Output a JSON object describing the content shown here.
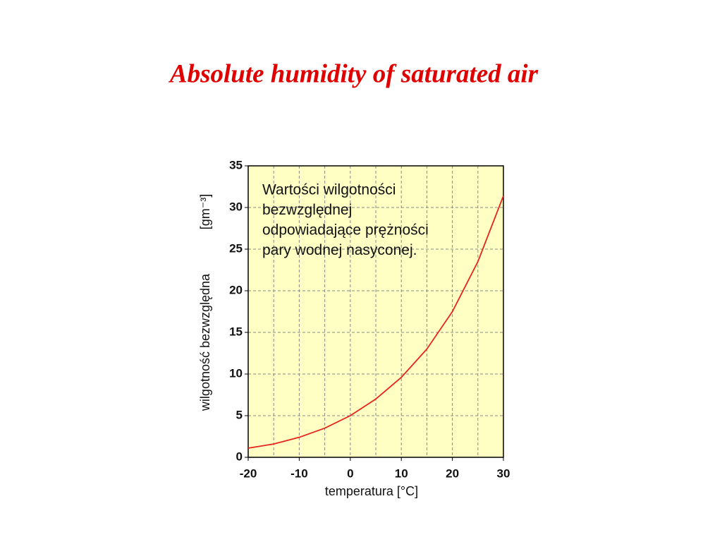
{
  "chart_data": {
    "type": "line",
    "title": "Absolute humidity of saturated air",
    "annotation": [
      "Wartości wilgotności",
      "bezwzględnej",
      "odpowiadające prężności",
      "pary wodnej nasyconej."
    ],
    "x_label": "temperatura [°C]",
    "y_label": "wilgotność bezwzględna",
    "y_unit": "[gm⁻³]",
    "x": [
      -20,
      -15,
      -10,
      -5,
      0,
      5,
      10,
      15,
      20,
      25,
      30
    ],
    "series": [
      {
        "name": "absolute humidity",
        "color": "#e8231e",
        "values": [
          1.1,
          1.6,
          2.4,
          3.5,
          5.0,
          7.0,
          9.6,
          13.0,
          17.5,
          23.5,
          31.4
        ]
      }
    ],
    "xlim": [
      -20,
      30
    ],
    "xticks": [
      -20,
      -10,
      0,
      10,
      20,
      30
    ],
    "ylim": [
      0,
      35
    ],
    "yticks": [
      0,
      5,
      10,
      15,
      20,
      25,
      30,
      35
    ],
    "grid": true,
    "background": "#ffffc4"
  }
}
